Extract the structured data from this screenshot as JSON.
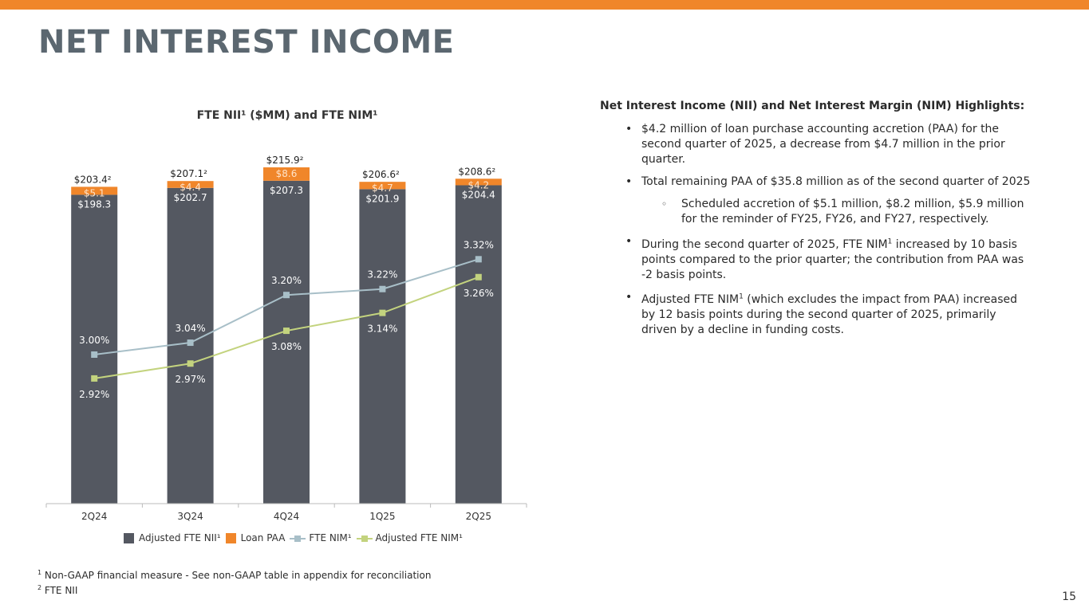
{
  "title": "NET INTEREST INCOME",
  "page_number": "15",
  "colors": {
    "accent_bar": "#f0862a",
    "adjusted_nii": "#545861",
    "loan_paa": "#f0862a",
    "fte_nim": "#a8bfc8",
    "adjusted_nim": "#c3d37e"
  },
  "chart_data": {
    "type": "bar",
    "title": "FTE NII¹ ($MM) and FTE NIM¹",
    "categories": [
      "2Q24",
      "3Q24",
      "4Q24",
      "1Q25",
      "2Q25"
    ],
    "series": [
      {
        "name": "Adjusted FTE NII¹",
        "kind": "stacked-bar",
        "values": [
          198.3,
          202.7,
          207.3,
          201.9,
          204.4
        ],
        "labels": [
          "$198.3",
          "$202.7",
          "$207.3",
          "$201.9",
          "$204.4"
        ]
      },
      {
        "name": "Loan PAA",
        "kind": "stacked-bar",
        "values": [
          5.1,
          4.4,
          8.6,
          4.7,
          4.2
        ],
        "labels": [
          "$5.1",
          "$4.4",
          "$8.6",
          "$4.7",
          "$4.2"
        ]
      },
      {
        "name": "FTE NIM¹",
        "kind": "line",
        "values": [
          3.0,
          3.04,
          3.2,
          3.22,
          3.32
        ],
        "labels": [
          "3.00%",
          "3.04%",
          "3.20%",
          "3.22%",
          "3.32%"
        ]
      },
      {
        "name": "Adjusted FTE NIM¹",
        "kind": "line",
        "values": [
          2.92,
          2.97,
          3.08,
          3.14,
          3.26
        ],
        "labels": [
          "2.92%",
          "2.97%",
          "3.08%",
          "3.14%",
          "3.26%"
        ]
      }
    ],
    "totals": [
      203.4,
      207.1,
      215.9,
      206.6,
      208.6
    ],
    "total_labels": [
      "$203.4²",
      "$207.1²",
      "$215.9²",
      "$206.6²",
      "$208.6²"
    ],
    "ylim_bars": [
      0,
      220
    ],
    "ylim_lines": [
      2.5,
      3.5
    ],
    "grid": false,
    "legend_position": "bottom"
  },
  "highlights": {
    "title": "Net Interest Income (NII) and Net Interest Margin (NIM) Highlights:",
    "bullet_1": "$4.2 million of loan purchase accounting accretion (PAA) for the second quarter of 2025, a decrease from $4.7 million in the prior quarter.",
    "bullet_2": "Total remaining PAA of $35.8 million as of the second quarter of 2025",
    "sub_bullet_1": "Scheduled accretion of $5.1 million, $8.2 million, $5.9 million for the reminder of FY25, FY26, and FY27, respectively.",
    "bullet_3_a": "During the second quarter of 2025, FTE NIM",
    "bullet_3_sup": "1",
    "bullet_3_b": " increased by 10 basis points compared to the prior quarter; the contribution from PAA was -2 basis points.",
    "bullet_4_a": "Adjusted FTE NIM",
    "bullet_4_sup": "1",
    "bullet_4_b": " (which excludes the impact from PAA) increased by 12 basis points during the second quarter of 2025, primarily driven by a decline in funding costs."
  },
  "footnotes": {
    "fn1_marker": "1",
    "fn1_text": " Non-GAAP financial measure - See non-GAAP table in appendix for reconciliation",
    "fn2_marker": "2",
    "fn2_text": " FTE NII"
  },
  "bullet_symbol": "•",
  "sub_bullet_symbol": "◦"
}
